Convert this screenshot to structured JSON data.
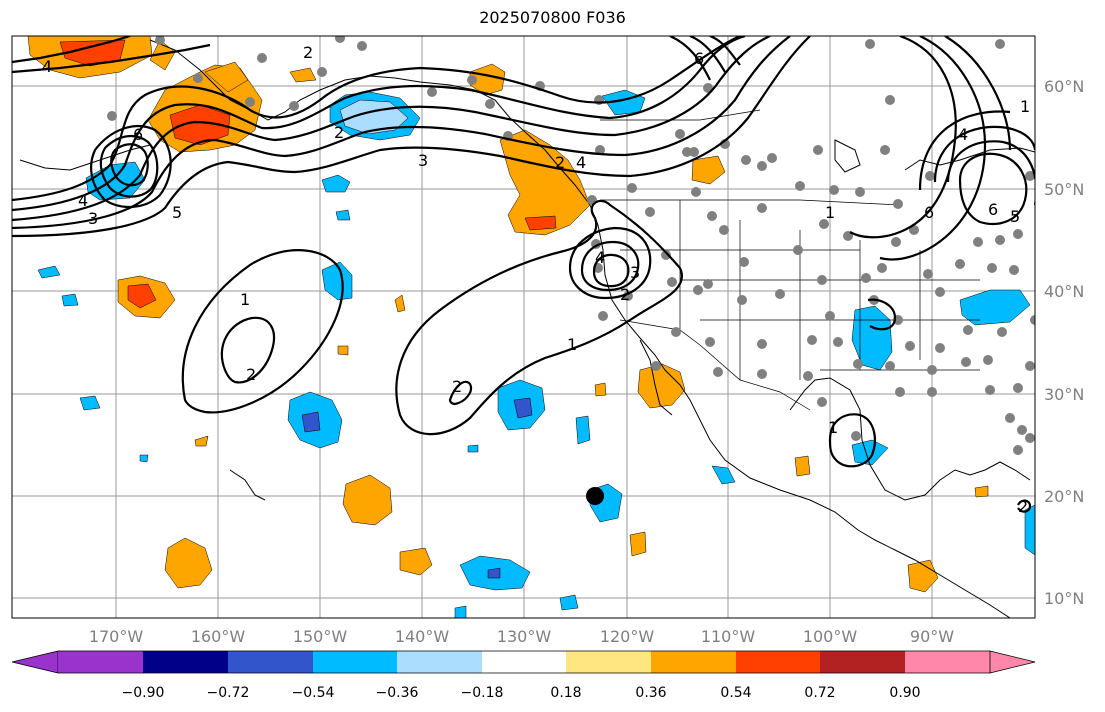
{
  "title": "2025070800 F036",
  "lat_labels": [
    "60°N",
    "50°N",
    "40°N",
    "30°N",
    "20°N",
    "10°N"
  ],
  "lon_labels": [
    "170°W",
    "160°W",
    "150°W",
    "140°W",
    "130°W",
    "120°W",
    "110°W",
    "100°W",
    "90°W"
  ],
  "colorbar": {
    "ticks": [
      "−0.90",
      "−0.72",
      "−0.54",
      "−0.36",
      "−0.18",
      "0.18",
      "0.36",
      "0.54",
      "0.72",
      "0.90"
    ],
    "colors": [
      "#9933cc",
      "#000088",
      "#3355cc",
      "#00bbff",
      "#aaddff",
      "#ffffff",
      "#ffe680",
      "#ffa500",
      "#ff4000",
      "#b22222",
      "#ff88aa",
      "#ff88aa"
    ]
  },
  "contour_labels": [
    "2",
    "4",
    "6",
    "4",
    "3",
    "5",
    "2",
    "3",
    "4",
    "2",
    "1",
    "6",
    "5",
    "6",
    "1",
    "2",
    "1",
    "2",
    "4",
    "3",
    "2",
    "1",
    "2",
    "1",
    "6",
    "4"
  ],
  "colors": {
    "orange": "#ffa500",
    "red": "#ff4000",
    "blue": "#00bbff",
    "lightblue": "#aaddff",
    "darkblue": "#3355cc",
    "station": "#808080"
  }
}
